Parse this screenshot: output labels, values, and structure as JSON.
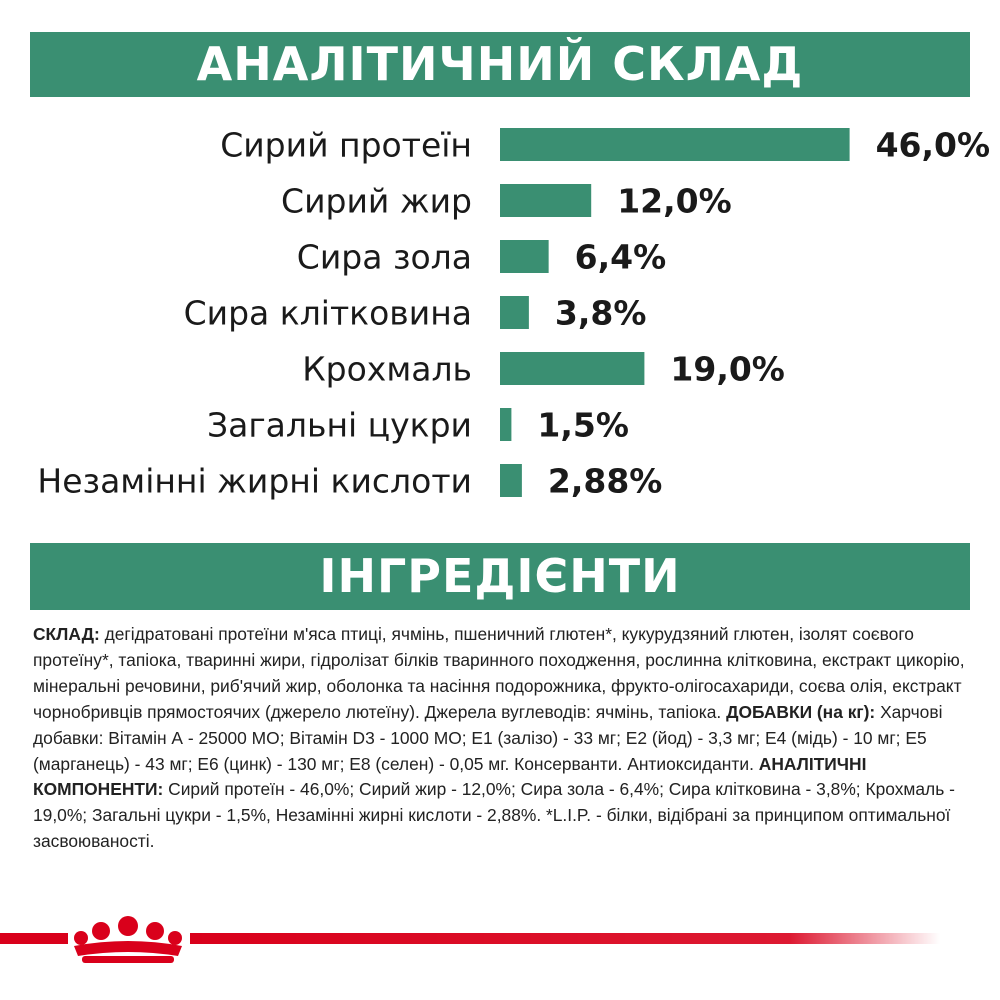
{
  "headers": {
    "analysis": "АНАЛІТИЧНИЙ СКЛАД",
    "ingredients": "ІНГРЕДІЄНТИ"
  },
  "colors": {
    "accent": "#3a8f72",
    "footer_red": "#d9001b"
  },
  "chart_data": {
    "type": "bar",
    "orientation": "horizontal",
    "categories": [
      "Сирий протеїн",
      "Сирий жир",
      "Сира зола",
      "Сира клітковина",
      "Крохмаль",
      "Загальні цукри",
      "Незамінні жирні кислоти"
    ],
    "values": [
      46.0,
      12.0,
      6.4,
      3.8,
      19.0,
      1.5,
      2.88
    ],
    "value_labels": [
      "46,0%",
      "12,0%",
      "6,4%",
      "3,8%",
      "19,0%",
      "1,5%",
      "2,88%"
    ],
    "grid": false,
    "legend": "none"
  },
  "ingredients_text": [
    {
      "t": "СКЛАД:",
      "b": true
    },
    {
      "t": " дегідратовані протеїни м'яса птиці, ячмінь, пшеничний глютен*, кукурудзяний глютен, ізолят соєвого протеїну*, тапіока, тваринні жири, гідролізат білків тваринного походження, рослинна клітковина, екстракт цикорію, мінеральні речовини, риб'ячий жир, оболонка та насіння подорожника, фрукто-олігосахариди, соєва олія, екстракт чорнобривців прямостоячих (джерело лютеїну). Джерела вуглеводів: ячмінь, тапіока. ",
      "b": false
    },
    {
      "t": "ДОБАВКИ (на кг):",
      "b": true
    },
    {
      "t": " Харчові добавки: Вітамін А - 25000 МО; Вітамін D3 - 1000 МО; Е1 (залізо) - 33 мг; Е2 (йод) - 3,3 мг; Е4 (мідь) - 10 мг; Е5 (марганець) - 43 мг; Е6 (цинк) - 130 мг; Е8 (селен) - 0,05 мг. Консерванти. Антиоксиданти. ",
      "b": false
    },
    {
      "t": "АНАЛІТИЧНІ КОМПОНЕНТИ:",
      "b": true
    },
    {
      "t": " Сирий протеїн - 46,0%; Сирий жир - 12,0%; Сира зола - 6,4%; Сира клітковина - 3,8%; Крохмаль - 19,0%; Загальні цукри - 1,5%, Незамінні жирні кислоти - 2,88%. *L.I.P. - білки, відібрані за принципом оптимальної засвоюваності.",
      "b": false
    }
  ],
  "brand": {
    "logo_icon": "royal-crown-icon"
  }
}
